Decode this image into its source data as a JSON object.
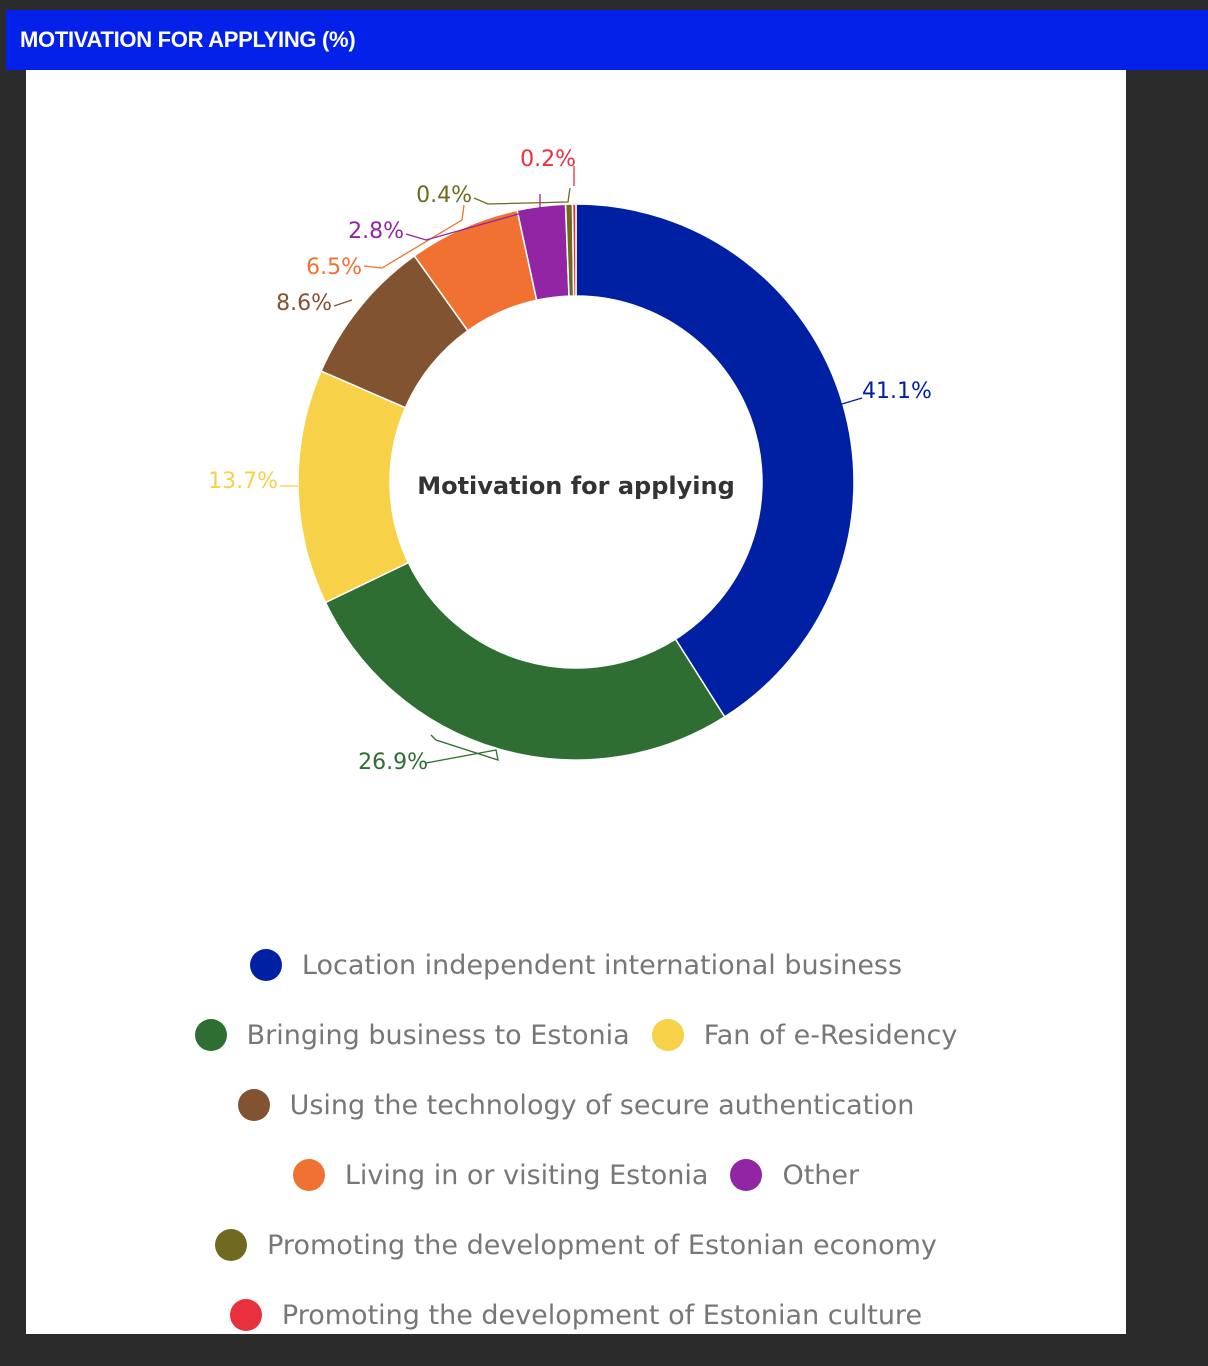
{
  "header": {
    "title": "MOTIVATION FOR APPLYING (%)"
  },
  "chart_data": {
    "type": "pie",
    "variant": "donut",
    "center_label": "Motivation for applying",
    "legend_position": "bottom",
    "slices": [
      {
        "name": "Location independent international business",
        "value": 41.1,
        "label": "41.1%",
        "color": "#0020a4"
      },
      {
        "name": "Bringing business to Estonia",
        "value": 26.9,
        "label": "26.9%",
        "color": "#2e6e33"
      },
      {
        "name": "Fan of e-Residency",
        "value": 13.7,
        "label": "13.7%",
        "color": "#f7d147"
      },
      {
        "name": "Using the technology of secure authentication",
        "value": 8.6,
        "label": "8.6%",
        "color": "#815330"
      },
      {
        "name": "Living in or visiting Estonia",
        "value": 6.5,
        "label": "6.5%",
        "color": "#f07131"
      },
      {
        "name": "Other",
        "value": 2.8,
        "label": "2.8%",
        "color": "#9125a3"
      },
      {
        "name": "Promoting the development of Estonian economy",
        "value": 0.4,
        "label": "0.4%",
        "color": "#6f6a1f"
      },
      {
        "name": "Promoting the development of Estonian culture",
        "value": 0.2,
        "label": "0.2%",
        "color": "#e8303f"
      }
    ]
  }
}
